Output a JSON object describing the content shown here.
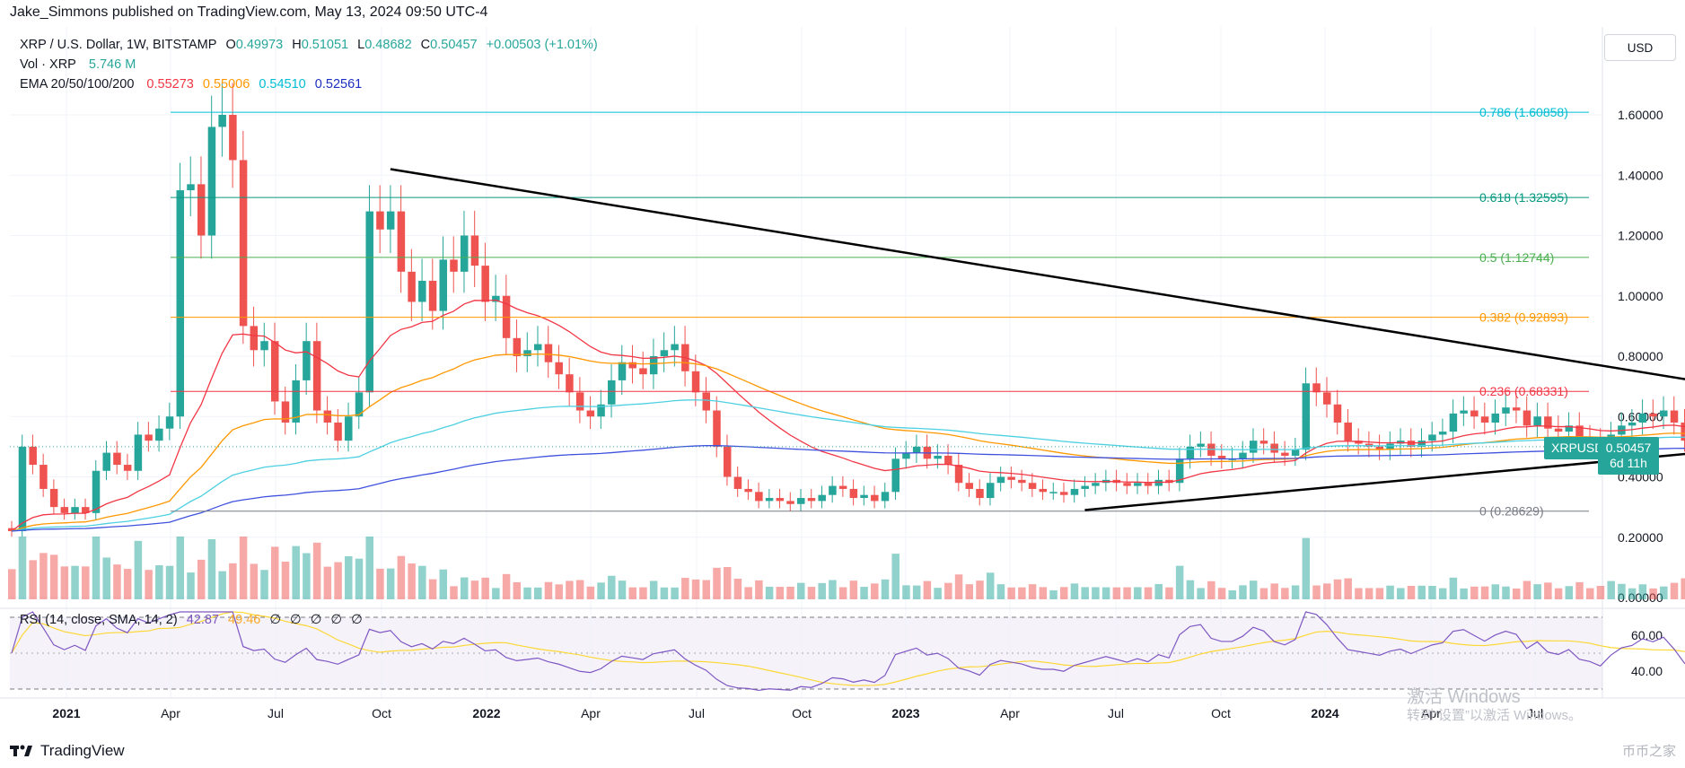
{
  "header": {
    "publisher": "Jake_Simmons published on TradingView.com, May 13, 2024 09:50 UTC-4"
  },
  "legend": {
    "symbol": "XRP / U.S. Dollar, 1W, BITSTAMP",
    "o_label": "O",
    "o_value": "0.49973",
    "h_label": "H",
    "h_value": "0.51051",
    "l_label": "L",
    "l_value": "0.48682",
    "c_label": "C",
    "c_value": "0.50457",
    "change": "+0.00503 (+1.01%)",
    "vol_label": "Vol · XRP",
    "vol_value": "5.746 M",
    "ema_label": "EMA 20/50/100/200",
    "ema20": "0.55273",
    "ema50": "0.55006",
    "ema100": "0.54510",
    "ema200": "0.52561",
    "rsi_label": "RSI (14, close, SMA, 14, 2)",
    "rsi_value": "42.87",
    "rsi_sma": "49.46",
    "rsi_placeholders": [
      "∅",
      "∅",
      "∅",
      "∅",
      "∅"
    ]
  },
  "currency_button": "USD",
  "price_badge": {
    "symbol": "XRPUSD",
    "price": "0.50457",
    "countdown": "6d 11h"
  },
  "logo_text": "TradingView",
  "watermark": {
    "line1": "激活 Windows",
    "line2": "转到“设置”以激活 Windows。"
  },
  "corner_mark": "币币之家",
  "colors": {
    "up": "#26a69a",
    "down": "#ef5350",
    "ema20": "#f23645",
    "ema50": "#ff9800",
    "ema100": "#4dd0e1",
    "ema200": "#3f51dd",
    "rsi": "#7e57c2",
    "rsi_sma": "#fdd835"
  },
  "chart_data": {
    "type": "candlestick",
    "timeframe": "1W",
    "y_axis": {
      "ticks": [
        "1.60000",
        "1.40000",
        "1.20000",
        "1.00000",
        "0.80000",
        "0.60000",
        "0.40000",
        "0.20000",
        "0.00000"
      ],
      "ylim": [
        0.0,
        1.8
      ]
    },
    "x_axis": {
      "ticks": [
        "2021",
        "Apr",
        "Jul",
        "Oct",
        "2022",
        "Apr",
        "Jul",
        "Oct",
        "2023",
        "Apr",
        "Jul",
        "Oct",
        "2024",
        "Apr",
        "Jul"
      ]
    },
    "fibonacci": [
      {
        "level": "0.786",
        "price": 1.60858,
        "label": "0.786 (1.60858)",
        "color": "#00bcd4"
      },
      {
        "level": "0.618",
        "price": 1.32595,
        "label": "0.618 (1.32595)",
        "color": "#089981"
      },
      {
        "level": "0.5",
        "price": 1.12744,
        "label": "0.5 (1.12744)",
        "color": "#4caf50"
      },
      {
        "level": "0.382",
        "price": 0.92893,
        "label": "0.382 (0.92893)",
        "color": "#ff9800"
      },
      {
        "level": "0.236",
        "price": 0.68331,
        "label": "0.236 (0.68331)",
        "color": "#f23645"
      },
      {
        "level": "0",
        "price": 0.28629,
        "label": "0 (0.28629)",
        "color": "#787b86"
      }
    ],
    "trendlines": [
      {
        "from": [
          "2021-08-30",
          1.42
        ],
        "to": [
          "2024-07-29",
          0.56
        ]
      },
      {
        "from": [
          "2022-12-05",
          0.29
        ],
        "to": [
          "2024-07-29",
          0.57
        ]
      }
    ],
    "closes": [
      0.22,
      0.5,
      0.44,
      0.36,
      0.3,
      0.28,
      0.3,
      0.28,
      0.42,
      0.48,
      0.44,
      0.42,
      0.54,
      0.52,
      0.56,
      0.6,
      1.35,
      1.37,
      1.2,
      1.56,
      1.6,
      1.45,
      0.9,
      0.82,
      0.85,
      0.65,
      0.58,
      0.72,
      0.85,
      0.62,
      0.58,
      0.52,
      0.6,
      0.68,
      1.28,
      1.22,
      1.28,
      1.08,
      0.98,
      1.05,
      0.95,
      1.12,
      1.08,
      1.2,
      1.1,
      0.98,
      1.0,
      0.86,
      0.8,
      0.82,
      0.84,
      0.78,
      0.74,
      0.68,
      0.62,
      0.6,
      0.64,
      0.72,
      0.78,
      0.76,
      0.74,
      0.8,
      0.82,
      0.84,
      0.75,
      0.68,
      0.62,
      0.5,
      0.4,
      0.36,
      0.35,
      0.32,
      0.33,
      0.32,
      0.31,
      0.33,
      0.32,
      0.34,
      0.37,
      0.36,
      0.33,
      0.34,
      0.32,
      0.35,
      0.46,
      0.48,
      0.5,
      0.46,
      0.47,
      0.44,
      0.38,
      0.36,
      0.33,
      0.38,
      0.4,
      0.39,
      0.38,
      0.36,
      0.35,
      0.35,
      0.34,
      0.36,
      0.37,
      0.38,
      0.39,
      0.38,
      0.37,
      0.38,
      0.37,
      0.39,
      0.38,
      0.46,
      0.5,
      0.51,
      0.47,
      0.46,
      0.46,
      0.48,
      0.52,
      0.51,
      0.48,
      0.47,
      0.49,
      0.71,
      0.68,
      0.64,
      0.58,
      0.52,
      0.51,
      0.5,
      0.49,
      0.51,
      0.52,
      0.5,
      0.52,
      0.54,
      0.55,
      0.61,
      0.62,
      0.6,
      0.58,
      0.61,
      0.63,
      0.62,
      0.57,
      0.6,
      0.56,
      0.55,
      0.57,
      0.53,
      0.52,
      0.5,
      0.54,
      0.57,
      0.58,
      0.61,
      0.6,
      0.62,
      0.58,
      0.52,
      0.5,
      0.51,
      0.48,
      0.5
    ],
    "ema": {
      "ema20": 0.55273,
      "ema50": 0.55006,
      "ema100": 0.5451,
      "ema200": 0.52561
    },
    "volume": {
      "axis_label": "Vol · XRP",
      "last": "5.746 M"
    },
    "rsi": {
      "ticks": [
        "60.00",
        "40.00"
      ],
      "range": [
        20,
        80
      ],
      "last": 42.87,
      "sma_last": 49.46
    }
  }
}
